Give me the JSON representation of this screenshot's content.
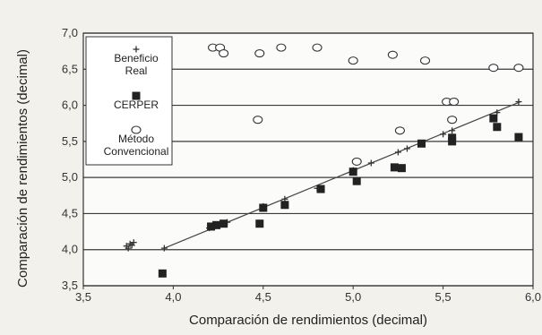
{
  "chart_data": {
    "type": "scatter",
    "title": "",
    "xlabel": "Comparación de rendimientos (decimal)",
    "ylabel": "Comparación de rendimientos (decimal)",
    "xlim": [
      3.5,
      6.0
    ],
    "ylim": [
      3.5,
      7.0
    ],
    "x_ticks": [
      "3,5",
      "4,0",
      "4,5",
      "5,0",
      "5,5",
      "6,0"
    ],
    "y_ticks": [
      "3,5",
      "4,0",
      "4,5",
      "5,0",
      "5,5",
      "6,0",
      "6,5",
      "7,0"
    ],
    "grid": "horizontal",
    "legend_position": "top-left",
    "series": [
      {
        "name": "Beneficio Real",
        "legend_lines": [
          "Beneficio",
          "Real"
        ],
        "marker": "plus",
        "color": "#333333",
        "points": [
          [
            3.74,
            4.05
          ],
          [
            3.76,
            4.08
          ],
          [
            3.78,
            4.1
          ],
          [
            3.75,
            4.02
          ],
          [
            3.77,
            4.06
          ],
          [
            3.95,
            4.02
          ],
          [
            4.2,
            4.3
          ],
          [
            4.3,
            4.38
          ],
          [
            4.5,
            4.6
          ],
          [
            4.62,
            4.7
          ],
          [
            4.8,
            4.85
          ],
          [
            5.0,
            5.1
          ],
          [
            5.1,
            5.2
          ],
          [
            5.25,
            5.35
          ],
          [
            5.3,
            5.4
          ],
          [
            5.5,
            5.6
          ],
          [
            5.55,
            5.65
          ],
          [
            5.8,
            5.9
          ],
          [
            5.92,
            6.05
          ]
        ],
        "fit_line": [
          [
            3.95,
            4.02
          ],
          [
            5.93,
            6.05
          ]
        ]
      },
      {
        "name": "CERPER",
        "legend_lines": [
          "CERPER"
        ],
        "marker": "square",
        "color": "#222222",
        "points": [
          [
            3.94,
            3.67
          ],
          [
            4.21,
            4.32
          ],
          [
            4.24,
            4.34
          ],
          [
            4.28,
            4.36
          ],
          [
            4.48,
            4.36
          ],
          [
            4.5,
            4.58
          ],
          [
            4.62,
            4.62
          ],
          [
            4.82,
            4.84
          ],
          [
            5.0,
            5.08
          ],
          [
            5.02,
            4.95
          ],
          [
            5.23,
            5.14
          ],
          [
            5.27,
            5.13
          ],
          [
            5.38,
            5.47
          ],
          [
            5.55,
            5.55
          ],
          [
            5.55,
            5.5
          ],
          [
            5.78,
            5.82
          ],
          [
            5.8,
            5.7
          ],
          [
            5.92,
            5.56
          ]
        ]
      },
      {
        "name": "Método Convencional",
        "legend_lines": [
          "Método",
          "Convencional"
        ],
        "marker": "circle",
        "color": "#333333",
        "points": [
          [
            3.94,
            5.8
          ],
          [
            4.22,
            6.8
          ],
          [
            4.26,
            6.8
          ],
          [
            4.28,
            6.72
          ],
          [
            4.47,
            5.8
          ],
          [
            4.48,
            6.72
          ],
          [
            4.6,
            6.8
          ],
          [
            4.8,
            6.8
          ],
          [
            5.0,
            6.62
          ],
          [
            5.02,
            5.22
          ],
          [
            5.22,
            6.7
          ],
          [
            5.26,
            5.65
          ],
          [
            5.4,
            6.62
          ],
          [
            5.52,
            6.05
          ],
          [
            5.56,
            6.05
          ],
          [
            5.55,
            5.8
          ],
          [
            5.78,
            6.52
          ],
          [
            5.92,
            6.52
          ]
        ]
      }
    ]
  }
}
